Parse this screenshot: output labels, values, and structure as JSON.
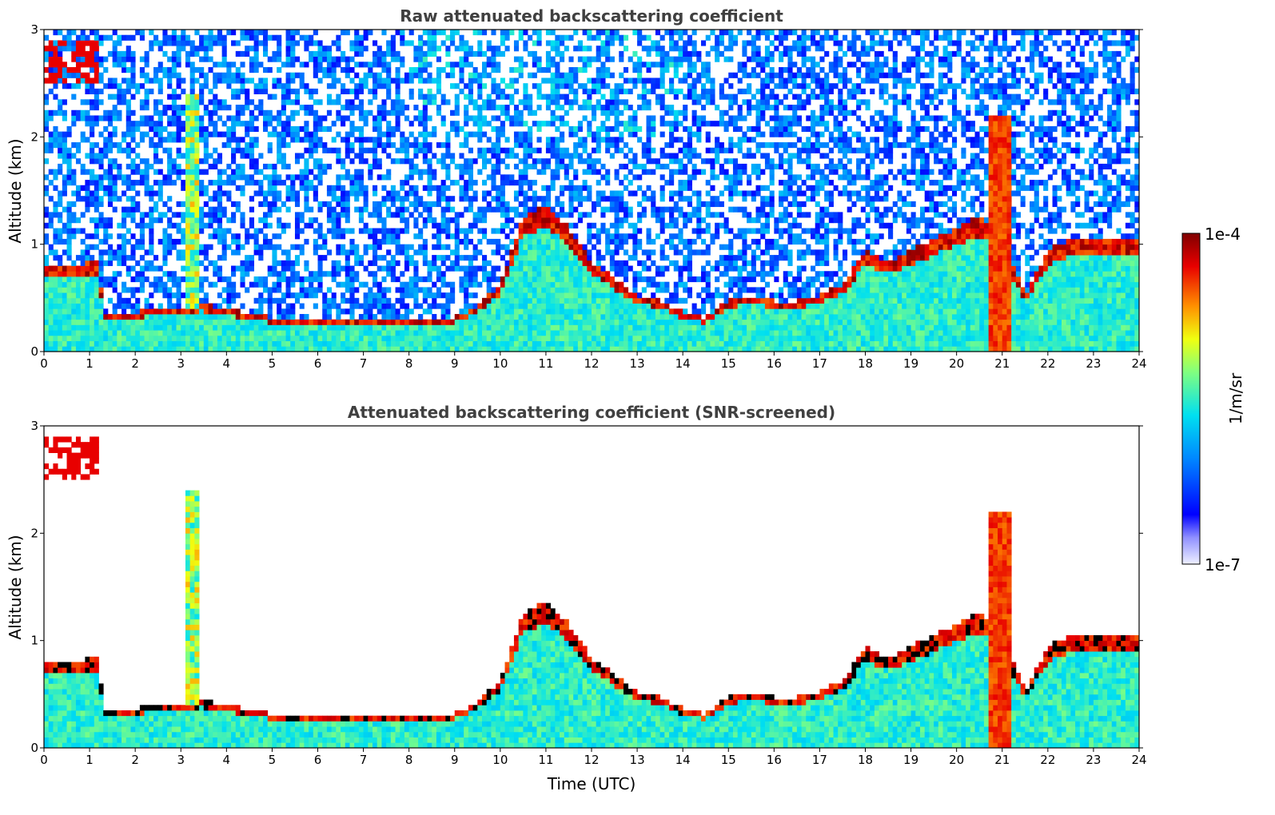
{
  "chart_data": [
    {
      "type": "heatmap",
      "title": "Raw attenuated backscattering coefficient",
      "xlabel": "",
      "ylabel": "Altitude (km)",
      "xlim": [
        0,
        24
      ],
      "ylim": [
        0,
        3
      ],
      "xticks": [
        "0",
        "1",
        "2",
        "3",
        "4",
        "5",
        "6",
        "7",
        "8",
        "9",
        "10",
        "11",
        "12",
        "13",
        "14",
        "15",
        "16",
        "17",
        "18",
        "19",
        "20",
        "21",
        "22",
        "23",
        "24"
      ],
      "yticks": [
        "0",
        "1",
        "2",
        "3"
      ],
      "screened": false,
      "boundary_layer_top_km": [
        [
          0,
          0.75
        ],
        [
          1.2,
          0.8
        ],
        [
          1.3,
          0.33
        ],
        [
          2,
          0.35
        ],
        [
          3,
          0.4
        ],
        [
          3.5,
          0.42
        ],
        [
          4,
          0.38
        ],
        [
          5,
          0.3
        ],
        [
          6,
          0.3
        ],
        [
          7,
          0.3
        ],
        [
          8,
          0.28
        ],
        [
          8.5,
          0.26
        ],
        [
          9,
          0.3
        ],
        [
          9.5,
          0.4
        ],
        [
          10,
          0.6
        ],
        [
          10.5,
          1.2
        ],
        [
          11,
          1.3
        ],
        [
          11.5,
          1.1
        ],
        [
          12,
          0.8
        ],
        [
          12.5,
          0.65
        ],
        [
          13,
          0.5
        ],
        [
          13.5,
          0.45
        ],
        [
          14,
          0.35
        ],
        [
          14.5,
          0.3
        ],
        [
          15,
          0.45
        ],
        [
          15.5,
          0.5
        ],
        [
          16,
          0.45
        ],
        [
          16.5,
          0.45
        ],
        [
          17,
          0.5
        ],
        [
          17.5,
          0.6
        ],
        [
          18,
          0.9
        ],
        [
          18.5,
          0.8
        ],
        [
          19,
          0.9
        ],
        [
          19.5,
          1.0
        ],
        [
          20,
          1.1
        ],
        [
          20.5,
          1.2
        ],
        [
          21,
          1.0
        ],
        [
          21.5,
          0.5
        ],
        [
          22,
          0.9
        ],
        [
          22.5,
          1.0
        ],
        [
          23,
          1.0
        ],
        [
          24,
          1.0
        ]
      ],
      "color_scale": {
        "min": "1e-7",
        "max": "1e-4",
        "units": "1/m/sr",
        "log": true
      }
    },
    {
      "type": "heatmap",
      "title": "Attenuated backscattering coefficient (SNR-screened)",
      "xlabel": "Time (UTC)",
      "ylabel": "Altitude (km)",
      "xlim": [
        0,
        24
      ],
      "ylim": [
        0,
        3
      ],
      "xticks": [
        "0",
        "1",
        "2",
        "3",
        "4",
        "5",
        "6",
        "7",
        "8",
        "9",
        "10",
        "11",
        "12",
        "13",
        "14",
        "15",
        "16",
        "17",
        "18",
        "19",
        "20",
        "21",
        "22",
        "23",
        "24"
      ],
      "yticks": [
        "0",
        "1",
        "2",
        "3"
      ],
      "screened": true,
      "color_scale": {
        "min": "1e-7",
        "max": "1e-4",
        "units": "1/m/sr",
        "log": true
      }
    }
  ],
  "colorbar": {
    "max_label": "1e-4",
    "min_label": "1e-7",
    "units": "1/m/sr"
  },
  "colors": {
    "background": "#ffffff",
    "title": "#404040"
  }
}
